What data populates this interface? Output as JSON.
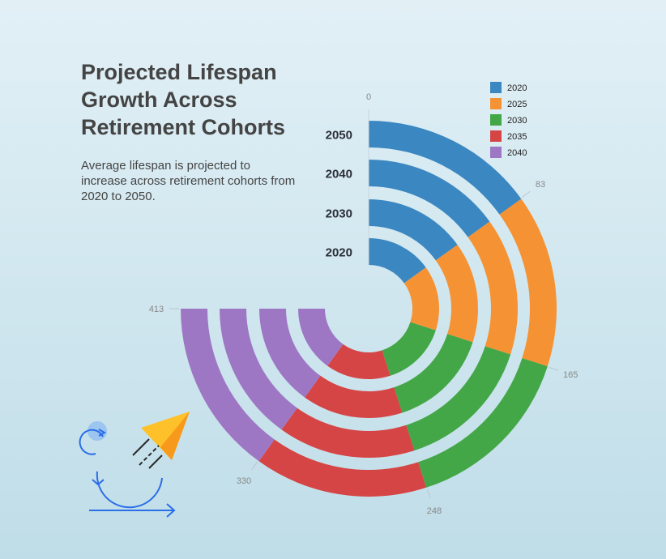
{
  "title": "Projected Lifespan Growth Across Retirement Cohorts",
  "subtitle": "Average lifespan is projected to increase across retirement cohorts from 2020 to 2050.",
  "chart_data": {
    "type": "radial-stacked-bar",
    "title": "Projected Lifespan Growth Across Retirement Cohorts",
    "scale_max": 413,
    "cohorts": [
      "2050",
      "2040",
      "2030",
      "2020"
    ],
    "series": [
      {
        "name": "2020",
        "color": "#3a87c1",
        "values": [
          83,
          83,
          83,
          83
        ]
      },
      {
        "name": "2025",
        "color": "#f59234",
        "values": [
          82,
          82,
          82,
          82
        ]
      },
      {
        "name": "2030",
        "color": "#43a747",
        "values": [
          83,
          83,
          83,
          83
        ]
      },
      {
        "name": "2035",
        "color": "#d64545",
        "values": [
          82,
          82,
          82,
          82
        ]
      },
      {
        "name": "2040",
        "color": "#9e77c4",
        "values": [
          83,
          83,
          83,
          83
        ]
      }
    ],
    "ticks": [
      "0",
      "83",
      "165",
      "248",
      "330",
      "413"
    ],
    "legend_position": "top-right"
  }
}
